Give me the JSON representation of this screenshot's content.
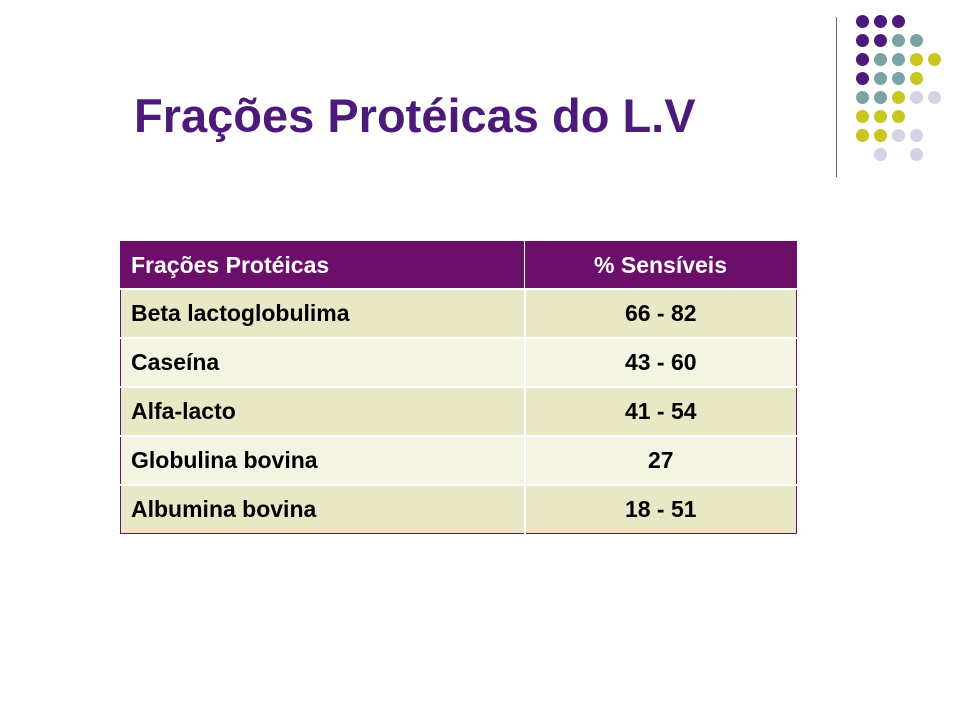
{
  "slide": {
    "title": "Frações Protéicas do L.V",
    "colors": {
      "title": "#4b1a7a",
      "header_bg": "#6b0f6b",
      "row_odd": "#e9e8c6",
      "row_even": "#f4f4e3",
      "dot_purple": "#4b1a7a",
      "dot_teal": "#7aa3a3",
      "dot_olive": "#c7c71f",
      "dot_lavender": "#d3d3e8"
    }
  },
  "table": {
    "headers": [
      "Frações Protéicas",
      "% Sensíveis"
    ],
    "rows": [
      [
        "Beta lactoglobulima",
        "66 - 82"
      ],
      [
        "Caseína",
        "43 - 60"
      ],
      [
        "Alfa-lacto",
        "41 - 54"
      ],
      [
        "Globulina bovina",
        "27"
      ],
      [
        "Albumina bovina",
        "18 - 51"
      ]
    ]
  }
}
